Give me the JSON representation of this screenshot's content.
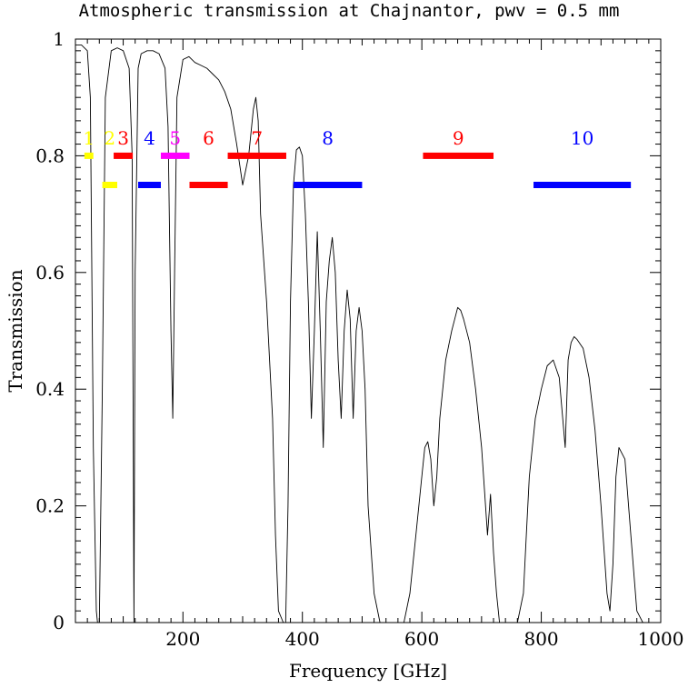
{
  "chart_data": {
    "type": "line",
    "title": "Atmospheric transmission at Chajnantor, pwv = 0.5 mm",
    "xlabel": "Frequency [GHz]",
    "ylabel": "Transmission",
    "xlim": [
      20,
      1000
    ],
    "ylim": [
      0,
      1
    ],
    "x_ticks": [
      200,
      400,
      600,
      800,
      1000
    ],
    "x_tick_labels": [
      "200",
      "400",
      "600",
      "800",
      "1000"
    ],
    "y_ticks": [
      0,
      0.2,
      0.4,
      0.6,
      0.8,
      1
    ],
    "y_tick_labels": [
      "0",
      "0.2",
      "0.4",
      "0.6",
      "0.8",
      "1"
    ],
    "grid": false,
    "series": [
      {
        "name": "Transmission",
        "color": "#000000",
        "x": [
          20,
          30,
          40,
          45,
          50,
          55,
          57,
          60,
          65,
          70,
          80,
          90,
          100,
          110,
          115,
          118,
          120,
          125,
          130,
          140,
          150,
          160,
          170,
          175,
          180,
          183,
          186,
          190,
          200,
          210,
          220,
          230,
          240,
          250,
          260,
          270,
          280,
          290,
          300,
          310,
          318,
          322,
          326,
          330,
          340,
          350,
          355,
          360,
          368,
          372,
          376,
          380,
          385,
          390,
          395,
          400,
          405,
          410,
          415,
          420,
          425,
          430,
          435,
          440,
          445,
          450,
          455,
          460,
          465,
          470,
          475,
          480,
          485,
          490,
          495,
          500,
          505,
          510,
          520,
          530,
          540,
          550,
          560,
          570,
          580,
          590,
          600,
          605,
          610,
          615,
          620,
          625,
          630,
          640,
          650,
          655,
          660,
          665,
          670,
          680,
          690,
          700,
          710,
          715,
          720,
          725,
          730,
          740,
          750,
          760,
          770,
          775,
          780,
          790,
          800,
          810,
          820,
          830,
          840,
          845,
          850,
          855,
          860,
          870,
          880,
          890,
          900,
          910,
          915,
          920,
          925,
          930,
          940,
          950,
          960,
          970
        ],
        "values": [
          0.99,
          0.99,
          0.98,
          0.9,
          0.3,
          0.02,
          0.0,
          0.0,
          0.4,
          0.9,
          0.98,
          0.985,
          0.98,
          0.95,
          0.8,
          0.0,
          0.6,
          0.95,
          0.975,
          0.98,
          0.98,
          0.975,
          0.95,
          0.85,
          0.5,
          0.35,
          0.6,
          0.9,
          0.965,
          0.97,
          0.96,
          0.955,
          0.95,
          0.94,
          0.93,
          0.91,
          0.88,
          0.82,
          0.75,
          0.8,
          0.88,
          0.9,
          0.86,
          0.7,
          0.55,
          0.35,
          0.15,
          0.02,
          0.0,
          0.0,
          0.2,
          0.55,
          0.75,
          0.81,
          0.815,
          0.8,
          0.7,
          0.55,
          0.35,
          0.5,
          0.67,
          0.5,
          0.3,
          0.55,
          0.62,
          0.66,
          0.6,
          0.45,
          0.35,
          0.5,
          0.57,
          0.52,
          0.35,
          0.5,
          0.54,
          0.5,
          0.4,
          0.2,
          0.05,
          0.0,
          0.0,
          0.0,
          0.0,
          0.0,
          0.05,
          0.15,
          0.25,
          0.3,
          0.31,
          0.28,
          0.2,
          0.25,
          0.35,
          0.45,
          0.5,
          0.52,
          0.54,
          0.535,
          0.52,
          0.48,
          0.4,
          0.3,
          0.15,
          0.22,
          0.12,
          0.05,
          0.0,
          0.0,
          0.0,
          0.0,
          0.05,
          0.15,
          0.25,
          0.35,
          0.4,
          0.44,
          0.45,
          0.42,
          0.3,
          0.45,
          0.48,
          0.49,
          0.485,
          0.47,
          0.42,
          0.33,
          0.2,
          0.05,
          0.02,
          0.1,
          0.25,
          0.3,
          0.28,
          0.15,
          0.02,
          0.0
        ]
      }
    ],
    "bands": [
      {
        "label": "1",
        "range": [
          35,
          50
        ],
        "y": 0.8,
        "color": "#ffff00"
      },
      {
        "label": "2",
        "range": [
          65,
          90
        ],
        "y": 0.75,
        "color": "#ffff00"
      },
      {
        "label": "3",
        "range": [
          84,
          116
        ],
        "y": 0.8,
        "color": "#ff0000"
      },
      {
        "label": "4",
        "range": [
          125,
          163
        ],
        "y": 0.75,
        "color": "#0000ff"
      },
      {
        "label": "5",
        "range": [
          163,
          211
        ],
        "y": 0.8,
        "color": "#ff00ff"
      },
      {
        "label": "6",
        "range": [
          211,
          275
        ],
        "y": 0.75,
        "color": "#ff0000"
      },
      {
        "label": "7",
        "range": [
          275,
          373
        ],
        "y": 0.8,
        "color": "#ff0000"
      },
      {
        "label": "8",
        "range": [
          385,
          500
        ],
        "y": 0.75,
        "color": "#0000ff"
      },
      {
        "label": "9",
        "range": [
          602,
          720
        ],
        "y": 0.8,
        "color": "#ff0000"
      },
      {
        "label": "10",
        "range": [
          787,
          950
        ],
        "y": 0.75,
        "color": "#0000ff"
      }
    ],
    "band_label_y": 0.83
  }
}
